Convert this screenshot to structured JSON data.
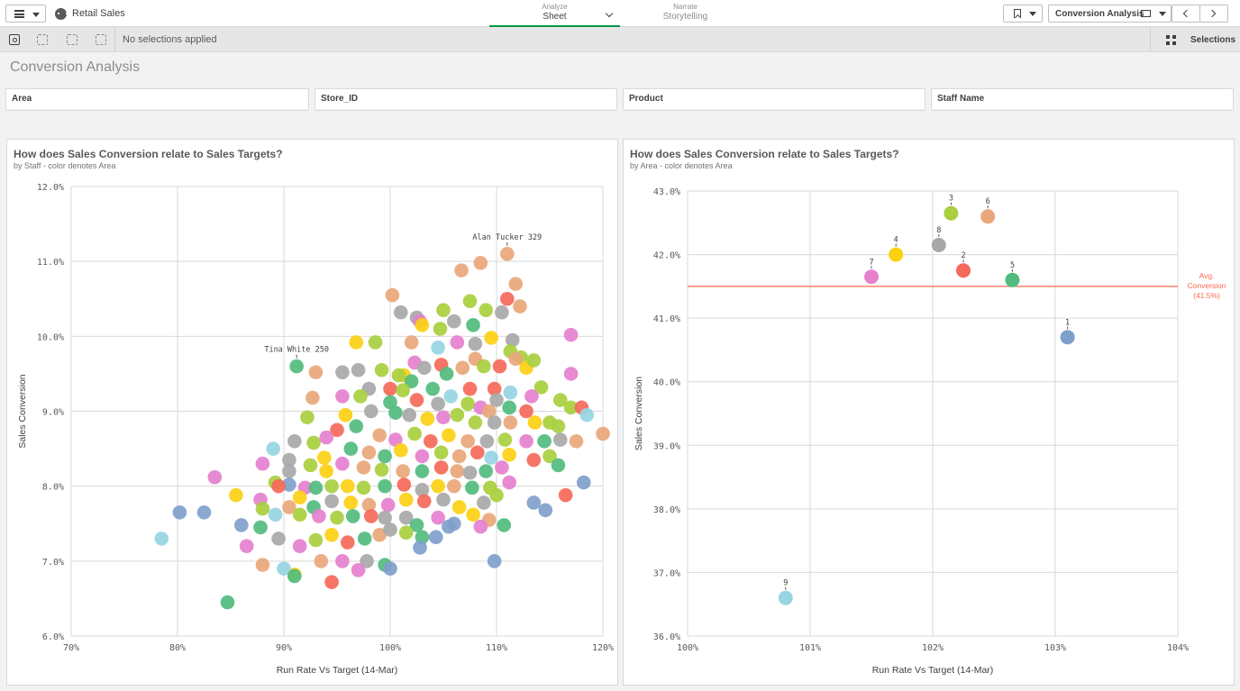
{
  "app": {
    "name": "Retail Sales"
  },
  "modes": {
    "analyze": {
      "small": "Analyze",
      "big": "Sheet"
    },
    "narrate": {
      "small": "Narrate",
      "big": "Storytelling"
    }
  },
  "toolbar": {
    "sheet_name": "Conversion Analysis",
    "icons": [
      "menu-icon",
      "bookmark-icon",
      "screen-icon",
      "chevron-left-icon",
      "chevron-right-icon"
    ]
  },
  "selection_bar": {
    "status": "No selections applied",
    "selections_label": "Selections"
  },
  "page": {
    "title": "Conversion Analysis"
  },
  "filters": [
    "Area",
    "Store_ID",
    "Product",
    "Staff Name"
  ],
  "colors": {
    "accent": "#009845",
    "avg_line": "#f8694f",
    "area": {
      "1": "#7f9fcb",
      "2": "#f5695a",
      "3": "#a9cf3f",
      "4": "#fcd012",
      "5": "#52bc7e",
      "6": "#e9a77a",
      "7": "#e580cf",
      "8": "#a8a8a8",
      "9": "#97d5e3"
    }
  },
  "panels": {
    "left": {
      "title": "How does Sales Conversion relate to Sales Targets?",
      "subtitle": "by Staff - color denotes Area"
    },
    "right": {
      "title": "How does Sales Conversion relate to Sales Targets?",
      "subtitle": "by Area - color denotes Area"
    }
  },
  "chart_data": [
    {
      "type": "scatter",
      "title": "How does Sales Conversion relate to Sales Targets?",
      "subtitle": "by Staff - color denotes Area",
      "xlabel": "Run Rate Vs Target (14-Mar)",
      "ylabel": "Sales Conversion",
      "xlim": [
        70,
        120
      ],
      "ylim": [
        6.0,
        12.0
      ],
      "xticks": [
        "70%",
        "80%",
        "90%",
        "100%",
        "110%",
        "120%"
      ],
      "yticks": [
        "6.0%",
        "7.0%",
        "8.0%",
        "9.0%",
        "10.0%",
        "11.0%",
        "12.0%"
      ],
      "grid": true,
      "annotations": [
        {
          "label": "Alan Tucker 329",
          "x": 111.0,
          "y": 11.1
        },
        {
          "label": "Tina White 250",
          "x": 91.2,
          "y": 9.6
        }
      ],
      "note": "~400 staff points, values estimated; series key = area id",
      "points": [
        [
          111.0,
          11.1,
          6
        ],
        [
          108.5,
          10.98,
          6
        ],
        [
          106.7,
          10.88,
          6
        ],
        [
          111.8,
          10.7,
          6
        ],
        [
          111.0,
          10.5,
          2
        ],
        [
          112.2,
          10.4,
          6
        ],
        [
          100.2,
          10.55,
          6
        ],
        [
          107.5,
          10.47,
          3
        ],
        [
          101.0,
          10.32,
          8
        ],
        [
          102.5,
          10.25,
          8
        ],
        [
          105.0,
          10.35,
          3
        ],
        [
          109.0,
          10.35,
          3
        ],
        [
          110.5,
          10.32,
          8
        ],
        [
          102.8,
          10.2,
          7
        ],
        [
          103.0,
          10.15,
          4
        ],
        [
          106.0,
          10.2,
          8
        ],
        [
          107.8,
          10.15,
          5
        ],
        [
          104.7,
          10.1,
          3
        ],
        [
          109.5,
          9.98,
          4
        ],
        [
          111.5,
          9.95,
          8
        ],
        [
          117.0,
          10.02,
          7
        ],
        [
          96.8,
          9.92,
          4
        ],
        [
          98.6,
          9.92,
          3
        ],
        [
          102.0,
          9.92,
          6
        ],
        [
          104.5,
          9.85,
          9
        ],
        [
          106.3,
          9.92,
          7
        ],
        [
          108.0,
          9.9,
          8
        ],
        [
          111.3,
          9.8,
          3
        ],
        [
          112.3,
          9.72,
          3
        ],
        [
          108.0,
          9.7,
          6
        ],
        [
          102.3,
          9.65,
          7
        ],
        [
          91.2,
          9.6,
          5
        ],
        [
          93.0,
          9.52,
          6
        ],
        [
          95.5,
          9.52,
          8
        ],
        [
          97.0,
          9.55,
          8
        ],
        [
          99.2,
          9.55,
          3
        ],
        [
          101.3,
          9.48,
          4
        ],
        [
          103.2,
          9.58,
          8
        ],
        [
          104.8,
          9.62,
          2
        ],
        [
          106.8,
          9.58,
          6
        ],
        [
          108.8,
          9.6,
          3
        ],
        [
          110.3,
          9.6,
          2
        ],
        [
          111.8,
          9.7,
          6
        ],
        [
          112.8,
          9.58,
          4
        ],
        [
          113.5,
          9.68,
          3
        ],
        [
          117.0,
          9.5,
          7
        ],
        [
          100.8,
          9.48,
          3
        ],
        [
          102.0,
          9.4,
          5
        ],
        [
          105.3,
          9.5,
          5
        ],
        [
          114.2,
          9.32,
          3
        ],
        [
          113.3,
          9.2,
          7
        ],
        [
          98.0,
          9.3,
          8
        ],
        [
          100.0,
          9.3,
          2
        ],
        [
          101.2,
          9.28,
          3
        ],
        [
          104.0,
          9.3,
          5
        ],
        [
          105.7,
          9.2,
          9
        ],
        [
          107.5,
          9.3,
          2
        ],
        [
          109.8,
          9.3,
          2
        ],
        [
          111.3,
          9.25,
          9
        ],
        [
          110.0,
          9.15,
          8
        ],
        [
          92.7,
          9.18,
          6
        ],
        [
          95.5,
          9.2,
          7
        ],
        [
          97.2,
          9.2,
          3
        ],
        [
          100.0,
          9.12,
          5
        ],
        [
          102.5,
          9.15,
          2
        ],
        [
          104.5,
          9.1,
          8
        ],
        [
          107.3,
          9.1,
          3
        ],
        [
          108.5,
          9.05,
          7
        ],
        [
          109.3,
          9.0,
          6
        ],
        [
          111.2,
          9.05,
          5
        ],
        [
          112.8,
          9.0,
          2
        ],
        [
          116.0,
          9.15,
          3
        ],
        [
          117.0,
          9.05,
          3
        ],
        [
          118.0,
          9.05,
          2
        ],
        [
          118.5,
          8.95,
          9
        ],
        [
          92.2,
          8.92,
          3
        ],
        [
          95.8,
          8.95,
          4
        ],
        [
          98.2,
          9.0,
          8
        ],
        [
          100.5,
          8.98,
          5
        ],
        [
          101.8,
          8.95,
          8
        ],
        [
          103.5,
          8.9,
          4
        ],
        [
          105.0,
          8.92,
          7
        ],
        [
          106.3,
          8.95,
          3
        ],
        [
          108.0,
          8.85,
          3
        ],
        [
          109.8,
          8.85,
          8
        ],
        [
          111.3,
          8.85,
          6
        ],
        [
          113.6,
          8.85,
          4
        ],
        [
          115.0,
          8.85,
          3
        ],
        [
          115.8,
          8.8,
          3
        ],
        [
          120.0,
          8.7,
          6
        ],
        [
          92.8,
          8.58,
          3
        ],
        [
          95.0,
          8.75,
          2
        ],
        [
          96.8,
          8.8,
          5
        ],
        [
          99.0,
          8.68,
          6
        ],
        [
          100.5,
          8.62,
          7
        ],
        [
          102.3,
          8.7,
          3
        ],
        [
          103.8,
          8.6,
          2
        ],
        [
          105.5,
          8.68,
          4
        ],
        [
          107.3,
          8.6,
          6
        ],
        [
          109.1,
          8.6,
          8
        ],
        [
          110.8,
          8.62,
          3
        ],
        [
          112.8,
          8.6,
          7
        ],
        [
          114.5,
          8.6,
          5
        ],
        [
          116.0,
          8.62,
          8
        ],
        [
          117.5,
          8.6,
          6
        ],
        [
          94.0,
          8.65,
          7
        ],
        [
          91.0,
          8.6,
          8
        ],
        [
          93.8,
          8.38,
          4
        ],
        [
          96.3,
          8.5,
          5
        ],
        [
          98.0,
          8.45,
          6
        ],
        [
          99.5,
          8.4,
          5
        ],
        [
          101.0,
          8.48,
          4
        ],
        [
          103.0,
          8.4,
          7
        ],
        [
          104.8,
          8.45,
          3
        ],
        [
          106.5,
          8.4,
          6
        ],
        [
          108.2,
          8.45,
          2
        ],
        [
          109.5,
          8.38,
          9
        ],
        [
          111.2,
          8.42,
          4
        ],
        [
          113.5,
          8.35,
          2
        ],
        [
          115.0,
          8.4,
          3
        ],
        [
          115.8,
          8.28,
          5
        ],
        [
          89.0,
          8.5,
          9
        ],
        [
          90.5,
          8.35,
          8
        ],
        [
          90.5,
          8.2,
          8
        ],
        [
          92.5,
          8.28,
          3
        ],
        [
          94.0,
          8.2,
          4
        ],
        [
          95.5,
          8.3,
          7
        ],
        [
          97.5,
          8.25,
          6
        ],
        [
          99.2,
          8.22,
          3
        ],
        [
          101.2,
          8.2,
          6
        ],
        [
          103.0,
          8.2,
          5
        ],
        [
          104.8,
          8.25,
          2
        ],
        [
          106.3,
          8.2,
          6
        ],
        [
          107.5,
          8.18,
          8
        ],
        [
          109.0,
          8.2,
          5
        ],
        [
          110.5,
          8.25,
          7
        ],
        [
          88.0,
          8.3,
          7
        ],
        [
          89.2,
          8.05,
          3
        ],
        [
          90.5,
          8.02,
          1
        ],
        [
          92.0,
          7.98,
          7
        ],
        [
          93.0,
          7.98,
          5
        ],
        [
          94.5,
          8.0,
          3
        ],
        [
          96.0,
          8.0,
          4
        ],
        [
          97.5,
          7.98,
          3
        ],
        [
          99.5,
          8.0,
          5
        ],
        [
          101.3,
          8.02,
          2
        ],
        [
          103.0,
          7.95,
          8
        ],
        [
          104.5,
          8.0,
          4
        ],
        [
          106.0,
          8.0,
          6
        ],
        [
          107.7,
          7.98,
          5
        ],
        [
          109.4,
          7.98,
          3
        ],
        [
          111.2,
          8.05,
          7
        ],
        [
          118.2,
          8.05,
          1
        ],
        [
          83.5,
          8.12,
          7
        ],
        [
          85.5,
          7.88,
          4
        ],
        [
          87.8,
          7.82,
          7
        ],
        [
          89.5,
          8.0,
          2
        ],
        [
          91.5,
          7.85,
          4
        ],
        [
          92.8,
          7.72,
          5
        ],
        [
          94.5,
          7.8,
          8
        ],
        [
          96.3,
          7.78,
          4
        ],
        [
          98.0,
          7.75,
          6
        ],
        [
          99.8,
          7.75,
          7
        ],
        [
          101.5,
          7.82,
          4
        ],
        [
          103.2,
          7.8,
          2
        ],
        [
          105.0,
          7.82,
          8
        ],
        [
          106.5,
          7.72,
          4
        ],
        [
          108.8,
          7.78,
          8
        ],
        [
          110.0,
          7.88,
          3
        ],
        [
          113.5,
          7.78,
          1
        ],
        [
          116.5,
          7.88,
          2
        ],
        [
          80.2,
          7.65,
          1
        ],
        [
          82.5,
          7.65,
          1
        ],
        [
          86.0,
          7.48,
          1
        ],
        [
          88.0,
          7.7,
          3
        ],
        [
          89.2,
          7.62,
          9
        ],
        [
          90.5,
          7.72,
          6
        ],
        [
          91.5,
          7.62,
          3
        ],
        [
          93.3,
          7.6,
          7
        ],
        [
          95.0,
          7.58,
          3
        ],
        [
          96.5,
          7.6,
          5
        ],
        [
          98.2,
          7.6,
          2
        ],
        [
          99.5,
          7.58,
          8
        ],
        [
          101.5,
          7.58,
          8
        ],
        [
          102.5,
          7.48,
          5
        ],
        [
          104.5,
          7.58,
          7
        ],
        [
          106.0,
          7.5,
          1
        ],
        [
          107.8,
          7.62,
          4
        ],
        [
          109.3,
          7.55,
          6
        ],
        [
          110.7,
          7.48,
          5
        ],
        [
          114.6,
          7.68,
          1
        ],
        [
          78.5,
          7.3,
          9
        ],
        [
          86.5,
          7.2,
          7
        ],
        [
          87.8,
          7.45,
          5
        ],
        [
          89.5,
          7.3,
          8
        ],
        [
          91.5,
          7.2,
          7
        ],
        [
          93.0,
          7.28,
          3
        ],
        [
          94.5,
          7.35,
          4
        ],
        [
          96.0,
          7.25,
          2
        ],
        [
          97.6,
          7.3,
          5
        ],
        [
          99.0,
          7.35,
          6
        ],
        [
          100.0,
          7.42,
          8
        ],
        [
          101.5,
          7.38,
          3
        ],
        [
          103.0,
          7.32,
          5
        ],
        [
          104.3,
          7.32,
          1
        ],
        [
          102.8,
          7.18,
          1
        ],
        [
          105.5,
          7.46,
          1
        ],
        [
          108.5,
          7.46,
          7
        ],
        [
          91.0,
          6.82,
          4
        ],
        [
          93.5,
          7.0,
          6
        ],
        [
          95.5,
          7.0,
          7
        ],
        [
          97.8,
          7.0,
          8
        ],
        [
          99.5,
          6.95,
          5
        ],
        [
          100.0,
          6.9,
          1
        ],
        [
          97.0,
          6.88,
          7
        ],
        [
          94.5,
          6.72,
          2
        ],
        [
          90.0,
          6.9,
          9
        ],
        [
          88.0,
          6.95,
          6
        ],
        [
          91.0,
          6.8,
          5
        ],
        [
          109.8,
          7.0,
          1
        ],
        [
          84.7,
          6.45,
          5
        ]
      ]
    },
    {
      "type": "scatter",
      "title": "How does Sales Conversion relate to Sales Targets?",
      "subtitle": "by Area - color denotes Area",
      "xlabel": "Run Rate Vs Target (14-Mar)",
      "ylabel": "Sales Conversion",
      "xlim": [
        100,
        104
      ],
      "ylim": [
        36.0,
        43.0
      ],
      "xticks": [
        "100%",
        "101%",
        "102%",
        "103%",
        "104%"
      ],
      "yticks": [
        "36.0%",
        "37.0%",
        "38.0%",
        "39.0%",
        "40.0%",
        "41.0%",
        "42.0%",
        "43.0%"
      ],
      "grid": true,
      "reference_line": {
        "label": "Avg. Conversion (41.5%)",
        "value": 41.5
      },
      "points": [
        {
          "label": "1",
          "x": 103.1,
          "y": 40.7
        },
        {
          "label": "2",
          "x": 102.25,
          "y": 41.75
        },
        {
          "label": "3",
          "x": 102.15,
          "y": 42.65
        },
        {
          "label": "4",
          "x": 101.7,
          "y": 42.0
        },
        {
          "label": "5",
          "x": 102.65,
          "y": 41.6
        },
        {
          "label": "6",
          "x": 102.45,
          "y": 42.6
        },
        {
          "label": "7",
          "x": 101.5,
          "y": 41.65
        },
        {
          "label": "8",
          "x": 102.05,
          "y": 42.15
        },
        {
          "label": "9",
          "x": 100.8,
          "y": 36.6
        }
      ]
    }
  ]
}
